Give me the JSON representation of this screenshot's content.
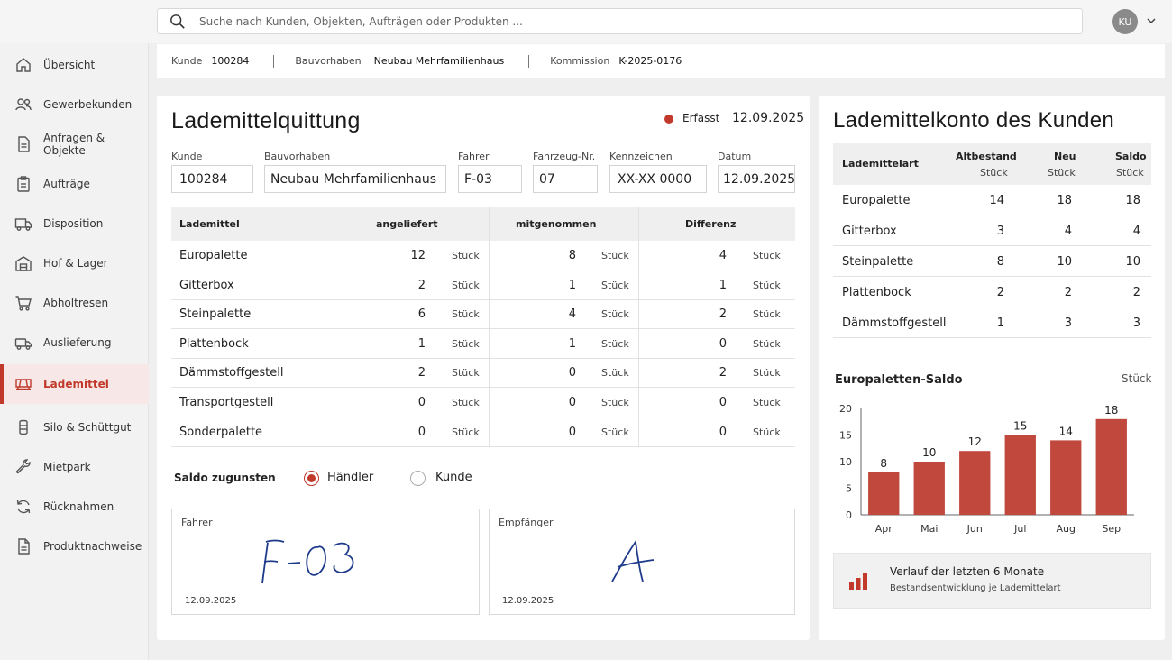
{
  "search": {
    "placeholder": "Suche nach Kunden, Objekten, Aufträgen oder Produkten ..."
  },
  "user": {
    "initials": "KU"
  },
  "nav": [
    {
      "label": "Übersicht",
      "icon": "home-icon"
    },
    {
      "label": "Gewerbekunden",
      "icon": "users-icon"
    },
    {
      "label": "Anfragen & Objekte",
      "icon": "document-icon"
    },
    {
      "label": "Aufträge",
      "icon": "clipboard-icon"
    },
    {
      "label": "Disposition",
      "icon": "truck-icon"
    },
    {
      "label": "Hof & Lager",
      "icon": "warehouse-icon"
    },
    {
      "label": "Abholtresen",
      "icon": "cart-icon"
    },
    {
      "label": "Auslieferung",
      "icon": "delivery-truck-icon"
    },
    {
      "label": "Lademittel",
      "icon": "pallet-icon",
      "active": true
    },
    {
      "label": "Silo & Schüttgut",
      "icon": "silo-icon"
    },
    {
      "label": "Mietpark",
      "icon": "wrench-icon"
    },
    {
      "label": "Rücknahmen",
      "icon": "refresh-icon"
    },
    {
      "label": "Produktnachweise",
      "icon": "file-icon"
    }
  ],
  "info": {
    "kunde_label": "Kunde",
    "kunde": "100284",
    "bauvorhaben_label": "Bauvorhaben",
    "bauvorhaben": "Neubau Mehrfamilienhaus",
    "kommission_label": "Kommission",
    "kommission": "K-2025-0176"
  },
  "receipt": {
    "title": "Lademittelquittung",
    "status": "Erfasst",
    "status_color": "#c0392b",
    "date": "12.09.2025",
    "fields": {
      "kunde_label": "Kunde",
      "kunde": "100284",
      "bauvorhaben_label": "Bauvorhaben",
      "bauvorhaben": "Neubau Mehrfamilienhaus",
      "fahrer_label": "Fahrer",
      "fahrer": "F-03",
      "fahrzeug_label": "Fahrzeug-Nr.",
      "fahrzeug": "07",
      "kennzeichen_label": "Kennzeichen",
      "kennzeichen": "XX-XX 0000",
      "datum_label": "Datum",
      "datum": "12.09.2025"
    },
    "table": {
      "headers": {
        "lademittel": "Lademittel",
        "angeliefert": "angeliefert",
        "mitgenommen": "mitgenommen",
        "differenz": "Differenz"
      },
      "unit": "Stück",
      "rows": [
        {
          "name": "Europalette",
          "angeliefert": "12",
          "mitgenommen": "8",
          "differenz": "4"
        },
        {
          "name": "Gitterbox",
          "angeliefert": "2",
          "mitgenommen": "1",
          "differenz": "1"
        },
        {
          "name": "Steinpalette",
          "angeliefert": "6",
          "mitgenommen": "4",
          "differenz": "2"
        },
        {
          "name": "Plattenbock",
          "angeliefert": "1",
          "mitgenommen": "1",
          "differenz": "0"
        },
        {
          "name": "Dämmstoffgestell",
          "angeliefert": "2",
          "mitgenommen": "0",
          "differenz": "2"
        },
        {
          "name": "Transportgestell",
          "angeliefert": "0",
          "mitgenommen": "0",
          "differenz": "0"
        },
        {
          "name": "Sonderpalette",
          "angeliefert": "0",
          "mitgenommen": "0",
          "differenz": "0"
        }
      ]
    },
    "saldo": {
      "label": "Saldo zugunsten",
      "option1": "Händler",
      "option2": "Kunde",
      "selected": "Händler"
    },
    "signatures": {
      "fahrer_label": "Fahrer",
      "fahrer_date": "12.09.2025",
      "empfaenger_label": "Empfänger",
      "empfaenger_date": "12.09.2025"
    }
  },
  "account": {
    "title": "Lademittelkonto des Kunden",
    "headers": {
      "art": "Lademittelart",
      "alt": "Altbestand",
      "neu": "Neu",
      "saldo": "Saldo",
      "unit": "Stück"
    },
    "rows": [
      {
        "name": "Europalette",
        "alt": "14",
        "neu": "18",
        "saldo": "18"
      },
      {
        "name": "Gitterbox",
        "alt": "3",
        "neu": "4",
        "saldo": "4"
      },
      {
        "name": "Steinpalette",
        "alt": "8",
        "neu": "10",
        "saldo": "10"
      },
      {
        "name": "Plattenbock",
        "alt": "2",
        "neu": "2",
        "saldo": "2"
      },
      {
        "name": "Dämmstoffgestell",
        "alt": "1",
        "neu": "3",
        "saldo": "3"
      }
    ],
    "chart_title": "Europaletten-Saldo",
    "chart_unit": "Stück",
    "footer_title": "Verlauf der letzten 6 Monate",
    "footer_sub": "Bestandsentwicklung je Lademittelart"
  },
  "chart_data": {
    "type": "bar",
    "categories": [
      "Apr",
      "Mai",
      "Jun",
      "Jul",
      "Aug",
      "Sep"
    ],
    "values": [
      8,
      10,
      12,
      15,
      14,
      18
    ],
    "title": "Europaletten-Saldo",
    "ylabel": "Stück",
    "ylim": [
      0,
      20
    ],
    "yticks": [
      0,
      5,
      10,
      15,
      20
    ],
    "bar_color": "#c0483d",
    "grid": false
  }
}
